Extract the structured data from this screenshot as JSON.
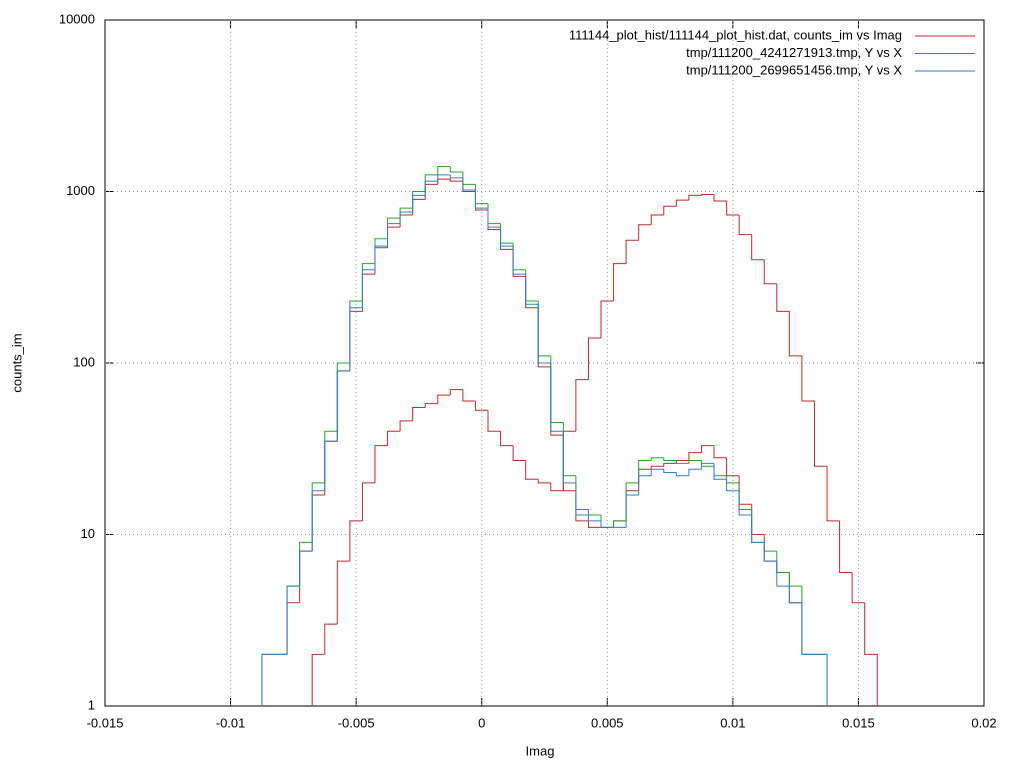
{
  "chart_data": {
    "type": "histogram-steps",
    "xlabel": "Imag",
    "ylabel": "counts_im",
    "log_y": true,
    "grid": true,
    "legend": "top-right",
    "xlim": [
      -0.015,
      0.02
    ],
    "xticks": [
      -0.015,
      -0.01,
      -0.005,
      0,
      0.005,
      0.01,
      0.015,
      0.02
    ],
    "ylim": [
      1,
      10000
    ],
    "yticks": [
      1,
      10,
      100,
      1000,
      10000
    ],
    "series": [
      {
        "name": "111144_plot_hist/111144_plot_hist.dat, counts_im vs Imag",
        "color": "#c42828",
        "x": [
          -0.0085,
          -0.008,
          -0.0075,
          -0.007,
          -0.0065,
          -0.006,
          -0.0055,
          -0.005,
          -0.0045,
          -0.004,
          -0.0035,
          -0.003,
          -0.0025,
          -0.002,
          -0.0015,
          -0.001,
          -0.0005,
          0,
          0.0005,
          0.001,
          0.0015,
          0.002,
          0.0025,
          0.003,
          0.0035,
          0.004,
          0.0045,
          0.005,
          0.0055,
          0.006,
          0.0065,
          0.007,
          0.0075,
          0.008,
          0.0085,
          0.009,
          0.0095,
          0.01,
          0.0105,
          0.011,
          0.0115,
          0.012,
          0.0125,
          0.013,
          0.0135,
          null,
          -0.0065,
          -0.006,
          -0.0055,
          -0.005,
          -0.0045,
          -0.004,
          -0.0035,
          -0.003,
          -0.0025,
          -0.002,
          -0.0015,
          -0.001,
          -0.0005,
          0,
          0.0005,
          0.001,
          0.0015,
          0.002,
          0.0025,
          0.003,
          0.0035,
          0.004,
          0.0045,
          0.005,
          0.0055,
          0.006,
          0.0065,
          0.007,
          0.0075,
          0.008,
          0.0085,
          0.009,
          0.0095,
          0.01,
          0.0105,
          0.011,
          0.0115,
          0.012,
          0.0125,
          0.013,
          0.0135,
          0.014,
          0.0145,
          0.015,
          0.0155
        ],
        "values": [
          2,
          2,
          4,
          8,
          17,
          35,
          90,
          200,
          330,
          470,
          620,
          730,
          900,
          1100,
          1180,
          1150,
          1000,
          780,
          600,
          460,
          320,
          210,
          95,
          38,
          18,
          12,
          11,
          11,
          12,
          18,
          24,
          25,
          26,
          27,
          30,
          33,
          28,
          22,
          15,
          10,
          7,
          6,
          4,
          2,
          2,
          null,
          2,
          3,
          7,
          12,
          20,
          33,
          40,
          46,
          55,
          58,
          65,
          70,
          60,
          53,
          40,
          33,
          27,
          21,
          20,
          18,
          40,
          80,
          140,
          230,
          380,
          520,
          640,
          730,
          820,
          890,
          950,
          960,
          880,
          730,
          560,
          400,
          290,
          200,
          110,
          60,
          25,
          12,
          6,
          4,
          2
        ]
      },
      {
        "name": "tmp/111200_4241271913.tmp, Y vs X",
        "color": "#22a722",
        "x": [
          -0.0085,
          -0.008,
          -0.0075,
          -0.007,
          -0.0065,
          -0.006,
          -0.0055,
          -0.005,
          -0.0045,
          -0.004,
          -0.0035,
          -0.003,
          -0.0025,
          -0.002,
          -0.0015,
          -0.001,
          -0.0005,
          0,
          0.0005,
          0.001,
          0.0015,
          0.002,
          0.0025,
          0.003,
          0.0035,
          0.004,
          0.0045,
          0.005,
          0.0055,
          0.006,
          0.0065,
          0.007,
          0.0075,
          0.008,
          0.0085,
          0.009,
          0.0095,
          0.01,
          0.0105,
          0.011,
          0.0115,
          0.012,
          0.0125,
          0.013,
          0.0135
        ],
        "values": [
          2,
          2,
          5,
          9,
          20,
          40,
          100,
          230,
          380,
          530,
          700,
          800,
          1000,
          1250,
          1400,
          1300,
          1100,
          850,
          650,
          500,
          350,
          230,
          110,
          45,
          22,
          14,
          13,
          11,
          12,
          20,
          27,
          28,
          27,
          26,
          27,
          25,
          22,
          20,
          14,
          9,
          8,
          6,
          5,
          2,
          2
        ]
      },
      {
        "name": "tmp/111200_2699651456.tmp, Y vs X",
        "color": "#2a7fd4",
        "x": [
          -0.0085,
          -0.008,
          -0.0075,
          -0.007,
          -0.0065,
          -0.006,
          -0.0055,
          -0.005,
          -0.0045,
          -0.004,
          -0.0035,
          -0.003,
          -0.0025,
          -0.002,
          -0.0015,
          -0.001,
          -0.0005,
          0,
          0.0005,
          0.001,
          0.0015,
          0.002,
          0.0025,
          0.003,
          0.0035,
          0.004,
          0.0045,
          0.005,
          0.0055,
          0.006,
          0.0065,
          0.007,
          0.0075,
          0.008,
          0.0085,
          0.009,
          0.0095,
          0.01,
          0.0105,
          0.011,
          0.0115,
          0.012,
          0.0125,
          0.013,
          0.0135
        ],
        "values": [
          2,
          2,
          5,
          8,
          18,
          35,
          90,
          210,
          350,
          480,
          650,
          760,
          950,
          1150,
          1250,
          1200,
          1020,
          800,
          620,
          480,
          330,
          220,
          100,
          40,
          20,
          13,
          12,
          11,
          11,
          17,
          22,
          24,
          23,
          22,
          24,
          26,
          21,
          18,
          13,
          9,
          7,
          5,
          4,
          2,
          2
        ]
      }
    ]
  }
}
